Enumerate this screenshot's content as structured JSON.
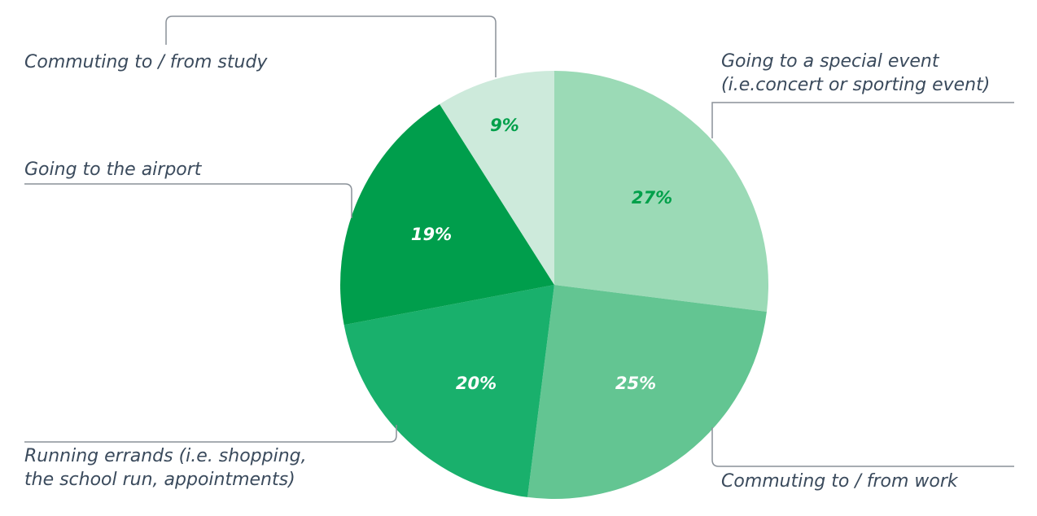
{
  "chart_data": {
    "type": "pie",
    "slices": [
      {
        "label_lines": [
          "Going to a special event",
          "(i.e.concert or sporting event)"
        ],
        "value": 27,
        "display": "27%",
        "color": "#9bdab6",
        "text_color": "#00a04a"
      },
      {
        "label_lines": [
          "Commuting to / from work"
        ],
        "value": 25,
        "display": "25%",
        "color": "#63c592",
        "text_color": "#ffffff"
      },
      {
        "label_lines": [
          "Running errands (i.e. shopping,",
          "the school run, appointments)"
        ],
        "value": 20,
        "display": "20%",
        "color": "#19b06c",
        "text_color": "#ffffff"
      },
      {
        "label_lines": [
          "Going to the airport"
        ],
        "value": 19,
        "display": "19%",
        "color": "#009e4c",
        "text_color": "#ffffff"
      },
      {
        "label_lines": [
          "Commuting to / from study"
        ],
        "value": 9,
        "display": "9%",
        "color": "#cdeadb",
        "text_color": "#00a04a"
      }
    ],
    "start_angle": "12 o'clock",
    "direction": "clockwise",
    "legend": "none"
  }
}
